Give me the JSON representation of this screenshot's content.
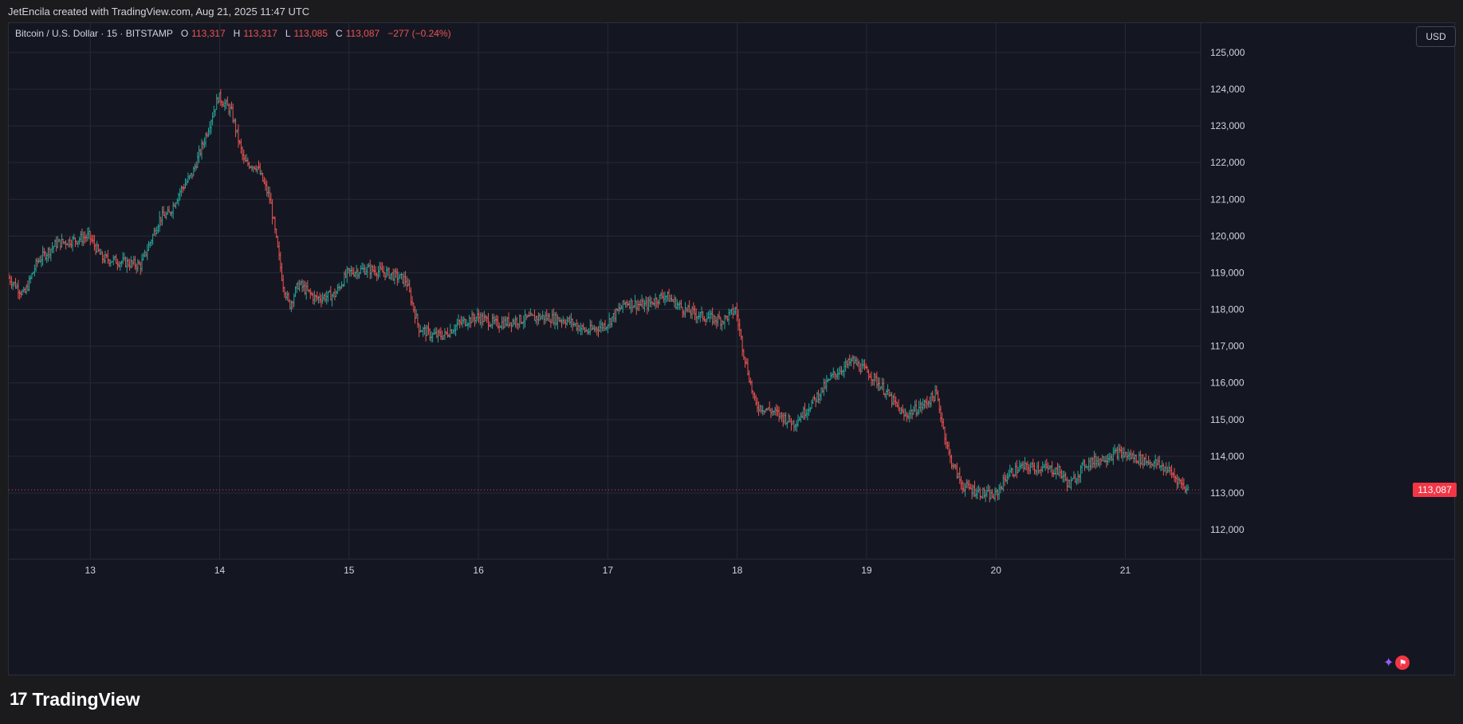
{
  "header": {
    "credit": "JetEncila created with TradingView.com, Aug 21, 2025 11:47 UTC"
  },
  "legend": {
    "symbol": "Bitcoin / U.S. Dollar · 15 · BITSTAMP",
    "o_label": "O",
    "o_value": "113,317",
    "h_label": "H",
    "h_value": "113,317",
    "l_label": "L",
    "l_value": "113,085",
    "c_label": "C",
    "c_value": "113,087",
    "change": "−277 (−0.24%)"
  },
  "currency": "USD",
  "last_price_label": "113,087",
  "footer": {
    "logo_mark": "17",
    "brand": "TradingView"
  },
  "colors": {
    "up": "#26a69a",
    "down": "#ef5350",
    "background": "#141722",
    "grid": "#262a36",
    "axis_text": "#d1d4dc",
    "price_tag": "#f23645"
  },
  "chart_data": {
    "type": "bar",
    "title": "Bitcoin / U.S. Dollar · 15 · BITSTAMP",
    "timeframe": "15",
    "xlabel": "",
    "ylabel": "",
    "ylim": [
      111200,
      125800
    ],
    "x_ticks": [
      "13",
      "14",
      "15",
      "16",
      "17",
      "18",
      "19",
      "20",
      "21"
    ],
    "y_ticks": [
      112000,
      113000,
      114000,
      115000,
      116000,
      117000,
      118000,
      119000,
      120000,
      121000,
      122000,
      123000,
      124000,
      125000
    ],
    "y_tick_labels": [
      "112,000",
      "113,000",
      "114,000",
      "115,000",
      "116,000",
      "117,000",
      "118,000",
      "119,000",
      "120,000",
      "121,000",
      "122,000",
      "123,000",
      "124,000",
      "125,000"
    ],
    "grid": true,
    "last_price": 113087,
    "x_range_days": [
      12.37,
      21.49
    ],
    "series": [
      {
        "x": [
          12.37,
          12.5,
          12.6,
          12.75,
          12.9,
          13.0,
          13.1,
          13.25,
          13.4,
          13.55,
          13.62,
          13.7,
          13.8,
          13.9,
          14.0,
          14.1,
          14.2,
          14.3,
          14.4,
          14.5,
          14.55,
          14.62,
          14.75,
          14.9,
          15.0,
          15.15,
          15.3,
          15.45,
          15.55,
          15.65,
          15.75,
          15.85,
          16.0,
          16.15,
          16.3,
          16.5,
          16.7,
          16.85,
          17.0,
          17.15,
          17.3,
          17.45,
          17.6,
          17.75,
          17.9,
          18.0,
          18.05,
          18.15,
          18.3,
          18.45,
          18.6,
          18.75,
          18.9,
          19.05,
          19.15,
          19.3,
          19.45,
          19.55,
          19.65,
          19.75,
          19.9,
          20.0,
          20.1,
          20.2,
          20.35,
          20.5,
          20.58,
          20.7,
          20.8,
          20.95,
          21.05,
          21.15,
          21.25,
          21.35,
          21.49
        ],
        "values": [
          118900,
          118400,
          119300,
          119800,
          119900,
          120000,
          119400,
          119300,
          119200,
          120500,
          120600,
          121200,
          121700,
          122700,
          123800,
          123400,
          122000,
          121900,
          121000,
          118700,
          118100,
          118700,
          118300,
          118400,
          119000,
          119100,
          119000,
          118800,
          117500,
          117300,
          117300,
          117600,
          117800,
          117600,
          117700,
          117800,
          117700,
          117400,
          117600,
          118200,
          118100,
          118400,
          118000,
          117800,
          117700,
          118000,
          117000,
          115400,
          115200,
          114900,
          115500,
          116200,
          116600,
          116200,
          115800,
          115100,
          115400,
          115700,
          114000,
          113200,
          113000,
          112900,
          113500,
          113700,
          113700,
          113600,
          113200,
          113800,
          113900,
          114100,
          114000,
          113900,
          113800,
          113600,
          113087
        ]
      }
    ]
  }
}
